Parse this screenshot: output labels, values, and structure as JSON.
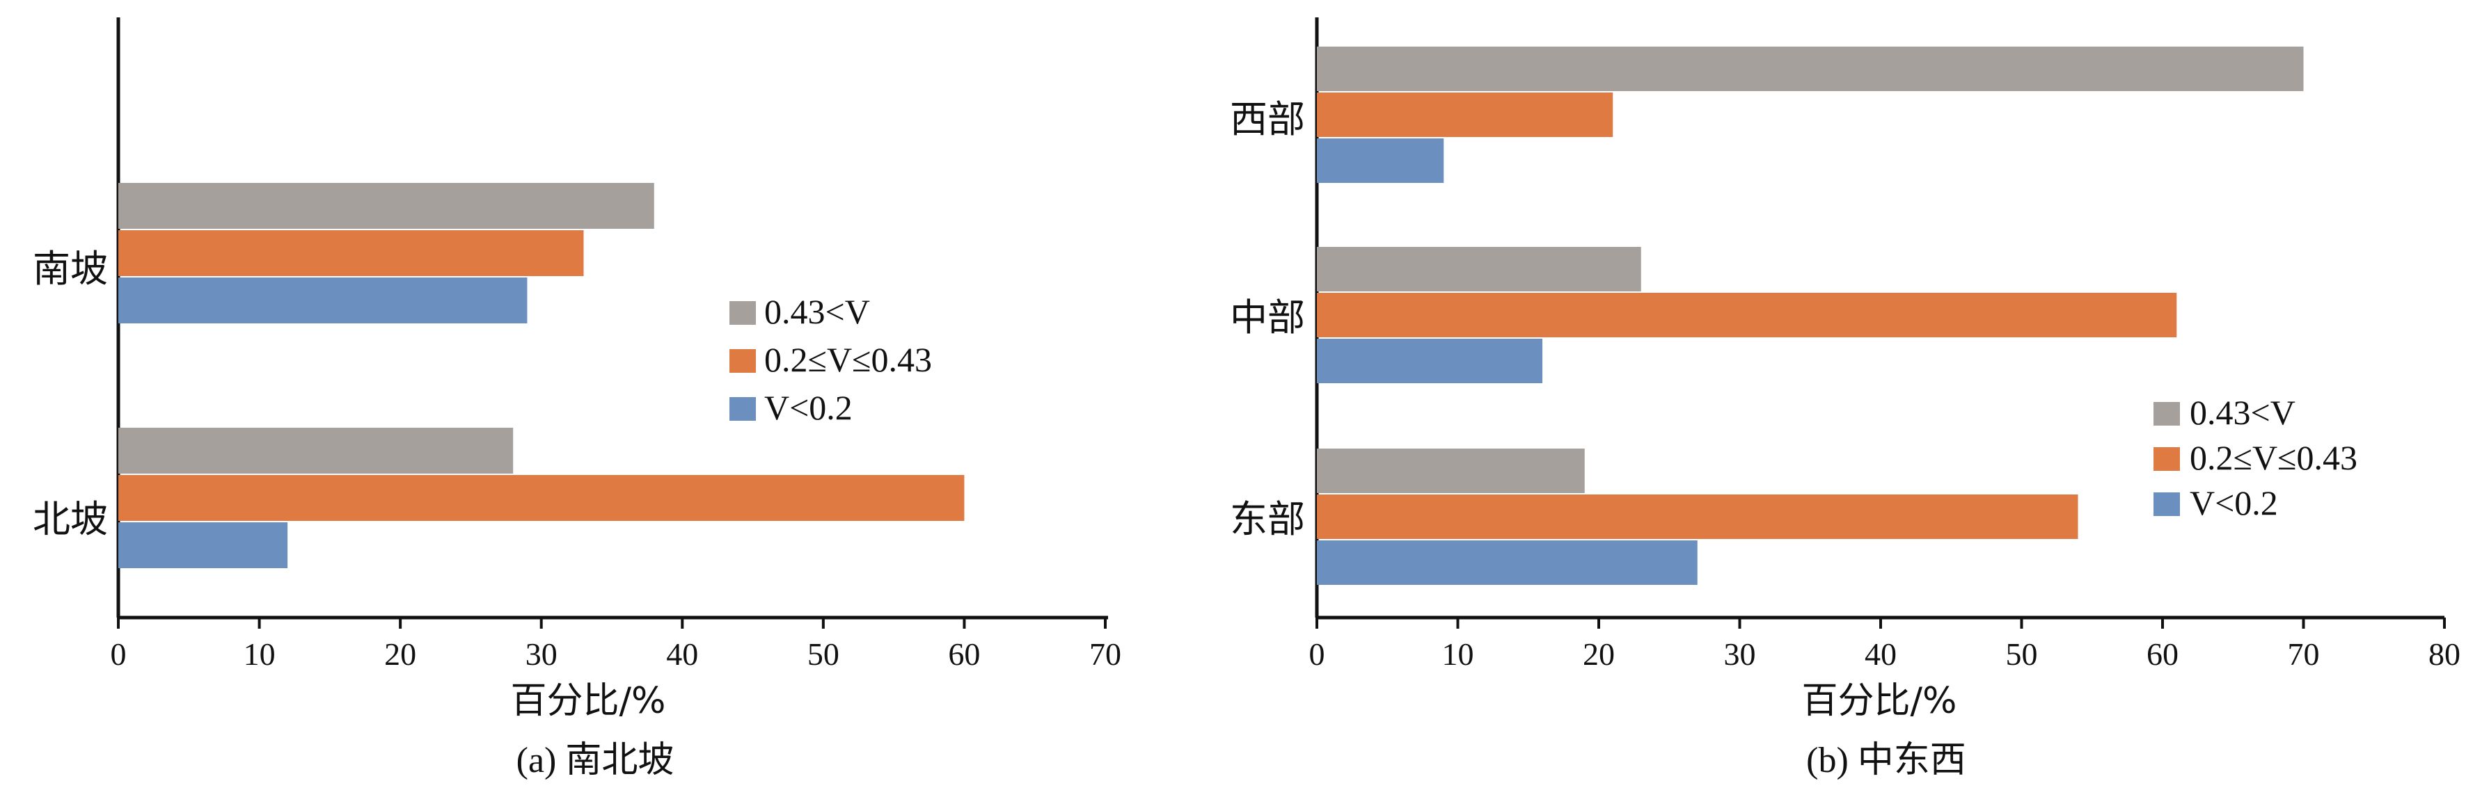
{
  "colors": {
    "gray": "#A5A09B",
    "orange": "#E07A43",
    "blue": "#6B8FBF",
    "axis": "#111111"
  },
  "chart_data": [
    {
      "type": "bar",
      "orientation": "horizontal",
      "caption": "(a) 南北坡",
      "xlabel": "百分比/%",
      "ylabel": "",
      "xlim": [
        0,
        70
      ],
      "xticks": [
        "0",
        "10",
        "20",
        "30",
        "40",
        "50",
        "60",
        "70"
      ],
      "grid": false,
      "legend_position": "right-middle",
      "categories": [
        "南坡",
        "北坡"
      ],
      "series": [
        {
          "name": "0.43<V",
          "color": "#A5A09B",
          "values": [
            38,
            28
          ]
        },
        {
          "name": "0.2≤V≤0.43",
          "color": "#E07A43",
          "values": [
            33,
            60
          ]
        },
        {
          "name": "V<0.2",
          "color": "#6B8FBF",
          "values": [
            29,
            12
          ]
        }
      ]
    },
    {
      "type": "bar",
      "orientation": "horizontal",
      "caption": "(b) 中东西",
      "xlabel": "百分比/%",
      "ylabel": "",
      "xlim": [
        0,
        80
      ],
      "xticks": [
        "0",
        "10",
        "20",
        "30",
        "40",
        "50",
        "60",
        "70",
        "80"
      ],
      "grid": false,
      "legend_position": "right-middle",
      "categories": [
        "西部",
        "中部",
        "东部"
      ],
      "series": [
        {
          "name": "0.43<V",
          "color": "#A5A09B",
          "values": [
            70,
            23,
            19
          ]
        },
        {
          "name": "0.2≤V≤0.43",
          "color": "#E07A43",
          "values": [
            21,
            61,
            54
          ]
        },
        {
          "name": "V<0.2",
          "color": "#6B8FBF",
          "values": [
            9,
            16,
            27
          ]
        }
      ]
    }
  ]
}
